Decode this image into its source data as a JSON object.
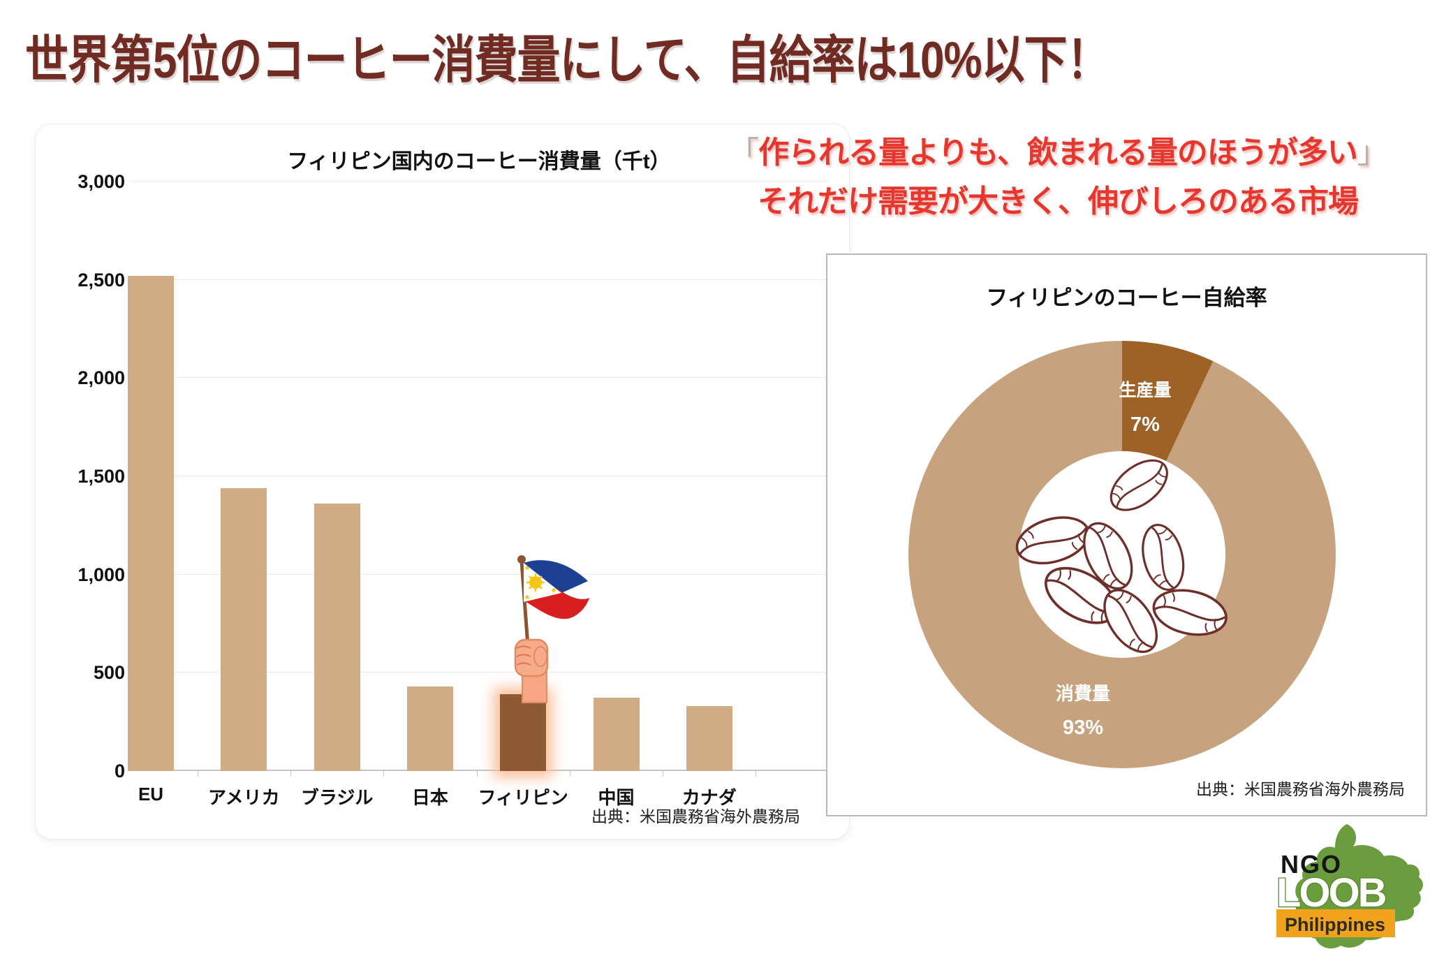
{
  "page": {
    "title": "世界第5位のコーヒー消費量にして、自給率は10%以下！"
  },
  "red_note": {
    "open_bracket": "「",
    "line1": "作られる量よりも、飲まれる量のほうが多い",
    "close_bracket": "」",
    "line2": "それだけ需要が大きく、伸びしろのある市場"
  },
  "bar_panel": {
    "title": "フィリピン国内のコーヒー消費量（千t）",
    "source": "出典：米国農務省海外農務局"
  },
  "donut_panel": {
    "title": "フィリピンのコーヒー自給率",
    "segment1_label": "生産量",
    "segment1_value": "7%",
    "segment2_label": "消費量",
    "segment2_value": "93%",
    "source": "出典：米国農務省海外農務局"
  },
  "logo": {
    "ngo": "NGO",
    "loob": "LOOB",
    "philippines": "Philippines"
  },
  "illustrations": {
    "bar_chart_marker": "hand-holding-philippine-flag",
    "donut_center": "coffee-beans"
  },
  "colors": {
    "title_maroon": "#702b23",
    "red_note": "#e5372e",
    "bar_tan": "#cfac84",
    "bar_highlight_brown": "#8d5a33",
    "donut_production": "#9e6126",
    "donut_consumption": "#c6a37e",
    "bean_outline": "#6e2e2a",
    "logo_green": "#6b9c3e",
    "logo_orange": "#f2a31d"
  },
  "chart_data": [
    {
      "type": "bar",
      "title": "フィリピン国内のコーヒー消費量（千t）",
      "categories": [
        "EU",
        "アメリカ",
        "ブラジル",
        "日本",
        "フィリピン",
        "中国",
        "カナダ"
      ],
      "values": [
        2520,
        1440,
        1360,
        430,
        390,
        375,
        330
      ],
      "unit": "千t",
      "xlabel": "",
      "ylabel": "",
      "ylim": [
        0,
        3000
      ],
      "ytick_step": 500,
      "grid": true,
      "legend": false,
      "bar_color": "#cfac84",
      "highlight_category": "フィリピン",
      "highlight_color": "#8d5a33",
      "source": "出典：米国農務省海外農務局"
    },
    {
      "type": "pie",
      "subtype": "donut",
      "title": "フィリピンのコーヒー自給率",
      "labels": [
        "生産量",
        "消費量"
      ],
      "values": [
        7,
        93
      ],
      "value_labels": [
        "7%",
        "93%"
      ],
      "colors": [
        "#9e6126",
        "#c6a37e"
      ],
      "start_angle_deg": 0,
      "direction": "clockwise",
      "source": "出典：米国農務省海外農務局"
    }
  ]
}
